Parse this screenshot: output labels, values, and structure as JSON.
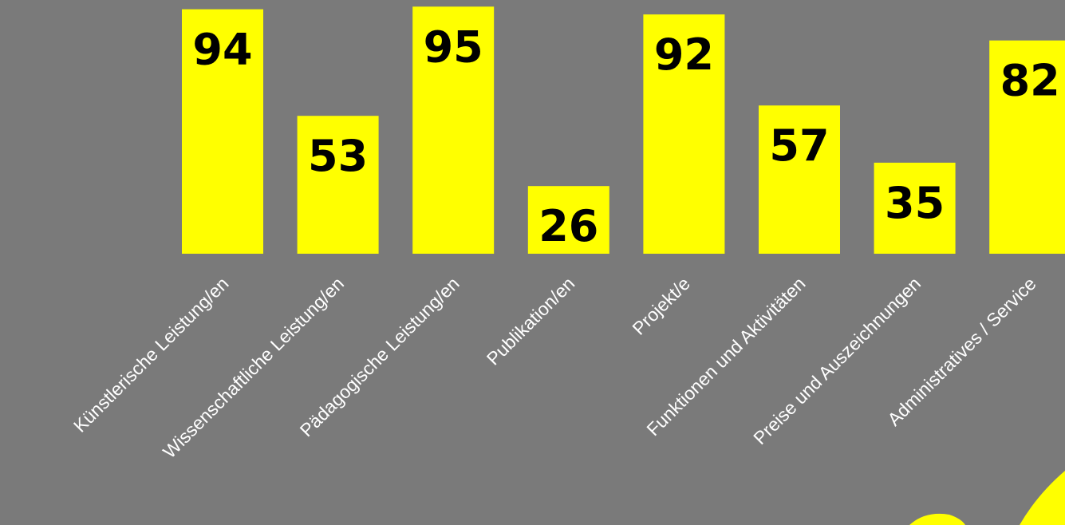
{
  "chart_data": {
    "type": "bar",
    "categories": [
      "Künstlerische Leistung/en",
      "Wissenschaftliche Leistung/en",
      "Pädagogische Leistung/en",
      "Publikation/en",
      "Projekt/e",
      "Funktionen und Aktivitäten",
      "Preise und Auszeichnungen",
      "Administratives / Service"
    ],
    "values": [
      94,
      53,
      95,
      26,
      92,
      57,
      35,
      82
    ],
    "ylim": [
      0,
      100
    ],
    "grid": false,
    "legend": "none",
    "colors": {
      "background": "#7a7a7a",
      "bar": "#ffff00",
      "value_label": "#000000",
      "category_label": "#ffffff",
      "decoration": "#ffff00"
    }
  }
}
